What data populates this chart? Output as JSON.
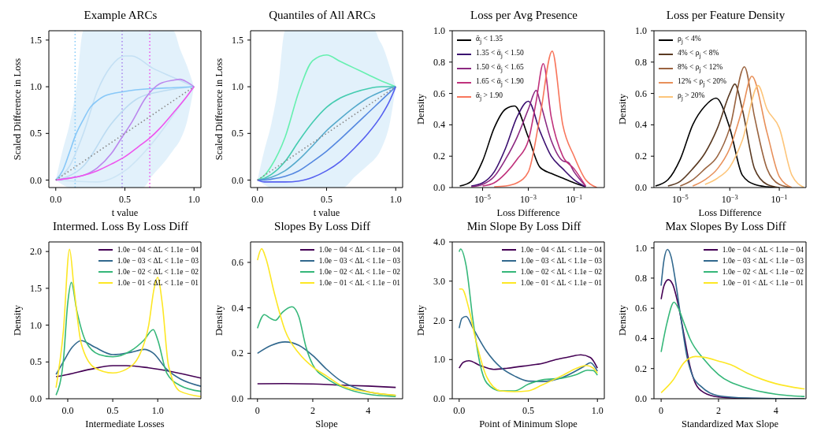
{
  "chart_data": [
    {
      "type": "line",
      "title": "Example ARCs",
      "xlabel": "t value",
      "ylabel": "Scaled Difference in Loss",
      "xlim": [
        -0.05,
        1.05
      ],
      "xticks": [
        {
          "value": 0,
          "label": "0.0"
        },
        0.5,
        {
          "value": 1,
          "label": "1.0"
        }
      ],
      "ylim": [
        -0.08,
        1.6
      ],
      "yticks": [
        {
          "value": 0,
          "label": "0.0"
        },
        0.5,
        {
          "value": 1,
          "label": "1.0"
        },
        1.5
      ],
      "ref_lines": [
        {
          "axis": "x",
          "value": 0.14,
          "color": "#88ccf8",
          "line_style": "dotted"
        },
        {
          "axis": "x",
          "value": 0.48,
          "color": "#aa88ee",
          "line_style": "dotted"
        },
        {
          "axis": "x",
          "value": 0.68,
          "color": "#ee55ee",
          "line_style": "dotted"
        }
      ],
      "series": [
        {
          "color": "#c4e0f4",
          "x": [
            0,
            0.1,
            0.2,
            0.3,
            0.4,
            0.5,
            0.55,
            0.7,
            0.85,
            1
          ],
          "values": [
            0,
            0.15,
            0.5,
            0.95,
            1.22,
            1.33,
            1.33,
            1.2,
            1.1,
            1
          ]
        },
        {
          "color": "#bcdcf2",
          "x": [
            0,
            0.2,
            0.4,
            0.6,
            0.8,
            1
          ],
          "values": [
            0,
            0.15,
            0.6,
            0.88,
            0.96,
            1
          ]
        },
        {
          "color": "#cde5f5",
          "x": [
            0,
            0.3,
            0.5,
            0.7,
            0.9,
            1
          ],
          "values": [
            0,
            -0.02,
            0.1,
            0.4,
            0.8,
            1
          ]
        },
        {
          "color": "#888888",
          "line_style": "dotted",
          "x": [
            0,
            0.05,
            0.1,
            0.15,
            0.2,
            0.3,
            0.4,
            0.5,
            0.6,
            0.63,
            0.7,
            0.8,
            0.85,
            0.9,
            0.95,
            1
          ],
          "values": [
            0,
            0.05,
            0.1,
            0.15,
            0.2,
            0.3,
            0.4,
            0.5,
            0.6,
            0.63,
            0.7,
            0.8,
            0.85,
            0.9,
            0.95,
            1
          ],
          "lower": [
            0,
            -0.05,
            -0.08,
            -0.08,
            -0.08,
            -0.08,
            -0.08,
            -0.08,
            -0.08,
            -0.08,
            0.05,
            0.22,
            0.32,
            0.43,
            0.63,
            1
          ],
          "upper": [
            0,
            0.32,
            0.6,
            1.0,
            1.6,
            1.6,
            1.6,
            1.6,
            1.6,
            1.6,
            1.6,
            1.6,
            1.6,
            1.4,
            1.22,
            1
          ]
        },
        {
          "color": "#88c8f8",
          "x": [
            0,
            0.05,
            0.1,
            0.14,
            0.2,
            0.25,
            0.3,
            0.35,
            0.5,
            0.7,
            0.85,
            1
          ],
          "values": [
            0,
            0.1,
            0.3,
            0.47,
            0.65,
            0.78,
            0.85,
            0.9,
            0.95,
            0.98,
            0.99,
            1
          ]
        },
        {
          "color": "#bb88ee",
          "x": [
            0,
            0.1,
            0.2,
            0.3,
            0.4,
            0.48,
            0.55,
            0.65,
            0.75,
            0.85,
            0.9,
            0.95,
            1
          ],
          "values": [
            0,
            0.02,
            0.05,
            0.13,
            0.28,
            0.46,
            0.62,
            0.88,
            1.03,
            1.07,
            1.08,
            1.05,
            1
          ]
        },
        {
          "color": "#ee55ee",
          "x": [
            0,
            0.1,
            0.2,
            0.3,
            0.4,
            0.5,
            0.6,
            0.68,
            0.75,
            0.85,
            0.95,
            1
          ],
          "values": [
            0,
            0.02,
            0.05,
            0.1,
            0.17,
            0.25,
            0.36,
            0.45,
            0.55,
            0.72,
            0.9,
            1
          ]
        }
      ]
    },
    {
      "type": "line",
      "title": "Quantiles of All ARCs",
      "xlabel": "t value",
      "ylabel": "Scaled Difference in Loss",
      "xlim": [
        -0.05,
        1.05
      ],
      "xticks": [
        {
          "value": 0,
          "label": "0.0"
        },
        0.5,
        {
          "value": 1,
          "label": "1.0"
        }
      ],
      "ylim": [
        -0.08,
        1.6
      ],
      "yticks": [
        {
          "value": 0,
          "label": "0.0"
        },
        0.5,
        {
          "value": 1,
          "label": "1.0"
        },
        1.5
      ],
      "series": [
        {
          "color": "#888888",
          "line_style": "dotted",
          "x": [
            0,
            0.05,
            0.1,
            0.15,
            0.2,
            0.3,
            0.4,
            0.5,
            0.62,
            0.7,
            0.8,
            0.85,
            0.88,
            0.9,
            0.96,
            1
          ],
          "values": [
            0,
            0.05,
            0.1,
            0.15,
            0.2,
            0.3,
            0.4,
            0.5,
            0.62,
            0.7,
            0.8,
            0.85,
            0.88,
            0.9,
            0.96,
            1
          ],
          "lower": [
            0,
            -0.05,
            -0.08,
            -0.08,
            -0.08,
            -0.08,
            -0.08,
            -0.08,
            -0.08,
            0.03,
            0.16,
            0.23,
            0.29,
            0.35,
            0.63,
            1
          ],
          "upper": [
            0,
            0.32,
            0.6,
            1.0,
            1.6,
            1.6,
            1.6,
            1.6,
            1.6,
            1.6,
            1.6,
            1.6,
            1.5,
            1.45,
            1.2,
            1
          ]
        },
        {
          "color": "#66f0b0",
          "x": [
            0,
            0.05,
            0.1,
            0.2,
            0.3,
            0.4,
            0.5,
            0.6,
            0.7,
            0.8,
            0.9,
            0.95,
            1
          ],
          "values": [
            0,
            0.05,
            0.15,
            0.46,
            0.95,
            1.28,
            1.34,
            1.27,
            1.2,
            1.13,
            1.06,
            1.03,
            1
          ]
        },
        {
          "color": "#44ccb0",
          "x": [
            0,
            0.05,
            0.1,
            0.2,
            0.3,
            0.4,
            0.5,
            0.6,
            0.7,
            0.8,
            0.9,
            0.95,
            1
          ],
          "values": [
            0,
            0.02,
            0.06,
            0.2,
            0.42,
            0.62,
            0.78,
            0.88,
            0.94,
            0.98,
            1,
            1,
            1
          ]
        },
        {
          "color": "#55aacc",
          "x": [
            0,
            0.05,
            0.1,
            0.2,
            0.3,
            0.4,
            0.5,
            0.6,
            0.7,
            0.8,
            0.9,
            0.95,
            1
          ],
          "values": [
            0,
            0.01,
            0.03,
            0.1,
            0.22,
            0.37,
            0.53,
            0.66,
            0.78,
            0.88,
            0.95,
            0.98,
            1
          ]
        },
        {
          "color": "#5588e0",
          "x": [
            0,
            0.05,
            0.1,
            0.2,
            0.3,
            0.4,
            0.5,
            0.6,
            0.7,
            0.8,
            0.9,
            0.95,
            1
          ],
          "values": [
            0,
            0,
            0.01,
            0.04,
            0.1,
            0.2,
            0.31,
            0.44,
            0.58,
            0.72,
            0.86,
            0.93,
            1
          ]
        },
        {
          "color": "#5560f0",
          "x": [
            0,
            0.05,
            0.1,
            0.2,
            0.3,
            0.4,
            0.5,
            0.6,
            0.7,
            0.8,
            0.9,
            0.95,
            1
          ],
          "values": [
            0,
            -0.02,
            -0.02,
            -0.02,
            -0.01,
            0.03,
            0.1,
            0.2,
            0.34,
            0.5,
            0.7,
            0.83,
            1
          ]
        }
      ]
    },
    {
      "type": "line",
      "title": "Loss per Avg Presence",
      "xlabel": "Loss Difference",
      "ylabel": "Density",
      "log": "x",
      "legend": "top left",
      "xlim": [
        4.7e-07,
        2.1
      ],
      "xticks": [
        {
          "value": 1e-05,
          "label": "10$^{−5}$"
        },
        {
          "value": 0.001,
          "label": "10$^{−3}$"
        },
        {
          "value": 0.1,
          "label": "10$^{−1}$"
        }
      ],
      "ylim": [
        0,
        1
      ],
      "yticks": [
        {
          "value": 0,
          "label": "0.0"
        },
        0.2,
        0.4,
        0.6,
        0.8,
        {
          "value": 1,
          "label": "1.0"
        }
      ],
      "series": [
        {
          "name": "ᾱ$_{j}$ < 1.35",
          "color": "#000000",
          "x": [
            1e-06,
            3.2e-06,
            1e-05,
            3.2e-05,
            0.0001,
            0.00025,
            0.001,
            0.0032,
            0.01,
            0.032,
            0.1,
            0.32
          ],
          "values": [
            0.01,
            0.04,
            0.17,
            0.38,
            0.5,
            0.52,
            0.32,
            0.13,
            0.09,
            0.06,
            0.03,
            0.005
          ]
        },
        {
          "name": "1.35 < ᾱ$_{j}$ < 1.50",
          "color": "#3b0f70",
          "x": [
            3.2e-06,
            1e-05,
            3.2e-05,
            0.0001,
            0.00032,
            0.001,
            0.0032,
            0.01,
            0.032,
            0.1,
            0.32
          ],
          "values": [
            0.01,
            0.03,
            0.1,
            0.25,
            0.45,
            0.55,
            0.36,
            0.2,
            0.12,
            0.05,
            0.005
          ]
        },
        {
          "name": "1.50 < ᾱ$_{j}$ < 1.65",
          "color": "#8c2981",
          "x": [
            3.2e-06,
            1e-05,
            3.2e-05,
            0.0001,
            0.00032,
            0.001,
            0.0022,
            0.0032,
            0.01,
            0.032,
            0.056,
            0.1,
            0.32
          ],
          "values": [
            0.005,
            0.02,
            0.07,
            0.18,
            0.32,
            0.5,
            0.62,
            0.55,
            0.3,
            0.17,
            0.16,
            0.1,
            0.01
          ]
        },
        {
          "name": "1.65 < ᾱ$_{j}$ < 1.90",
          "color": "#c0327c",
          "x": [
            1e-05,
            3.2e-05,
            0.0001,
            0.00032,
            0.001,
            0.0022,
            0.0045,
            0.01,
            0.032,
            0.1,
            0.32
          ],
          "values": [
            0.01,
            0.03,
            0.09,
            0.18,
            0.3,
            0.55,
            0.79,
            0.45,
            0.2,
            0.12,
            0.01
          ]
        },
        {
          "name": "ᾱ$_{j}$ > 1.90",
          "color": "#f8765c",
          "x": [
            3.2e-05,
            0.0001,
            0.00032,
            0.001,
            0.0032,
            0.011,
            0.032,
            0.1,
            0.32,
            1
          ],
          "values": [
            0.005,
            0.01,
            0.03,
            0.1,
            0.45,
            0.87,
            0.4,
            0.2,
            0.05,
            0
          ]
        }
      ]
    },
    {
      "type": "line",
      "title": "Loss per Feature Density",
      "xlabel": "Loss Difference",
      "ylabel": "Density",
      "log": "x",
      "legend": "top left",
      "xlim": [
        8.7e-07,
        1.2
      ],
      "xticks": [
        {
          "value": 1e-05,
          "label": "10$^{−5}$"
        },
        {
          "value": 0.001,
          "label": "10$^{−3}$"
        },
        {
          "value": 0.1,
          "label": "10$^{−1}$"
        }
      ],
      "ylim": [
        0,
        1
      ],
      "yticks": [
        {
          "value": 0,
          "label": "0.0"
        },
        0.2,
        0.4,
        0.6,
        0.8,
        {
          "value": 1,
          "label": "1.0"
        }
      ],
      "series": [
        {
          "name": "ρ$_{j}$ < 4%",
          "color": "#000000",
          "x": [
            1e-06,
            3.2e-06,
            1e-05,
            3.2e-05,
            0.0001,
            0.00028,
            0.001,
            0.0032,
            0.01,
            0.032,
            0.1
          ],
          "values": [
            0.01,
            0.05,
            0.18,
            0.4,
            0.52,
            0.57,
            0.38,
            0.08,
            0.02,
            0.005,
            0
          ]
        },
        {
          "name": "4% < ρ$_{j}$ < 8%",
          "color": "#5a3a22",
          "x": [
            3.2e-06,
            1e-05,
            3.2e-05,
            0.0001,
            0.00032,
            0.001,
            0.0016,
            0.0032,
            0.01,
            0.032,
            0.1
          ],
          "values": [
            0.01,
            0.04,
            0.12,
            0.22,
            0.38,
            0.6,
            0.66,
            0.5,
            0.12,
            0.02,
            0
          ]
        },
        {
          "name": "8% < ρ$_{j}$ < 12%",
          "color": "#9a6440",
          "x": [
            1e-05,
            3.2e-05,
            0.0001,
            0.00032,
            0.001,
            0.0039,
            0.01,
            0.032,
            0.1,
            0.32
          ],
          "values": [
            0.01,
            0.05,
            0.12,
            0.2,
            0.38,
            0.77,
            0.45,
            0.12,
            0.02,
            0
          ]
        },
        {
          "name": "12% < ρ$_{j}$ < 20%",
          "color": "#e8905a",
          "x": [
            3.2e-05,
            0.0001,
            0.00032,
            0.001,
            0.0032,
            0.0078,
            0.032,
            0.1,
            0.32
          ],
          "values": [
            0.01,
            0.05,
            0.12,
            0.25,
            0.5,
            0.71,
            0.35,
            0.07,
            0
          ]
        },
        {
          "name": "ρ$_{j}$ > 20%",
          "color": "#fdc57a",
          "x": [
            0.0001,
            0.00032,
            0.001,
            0.0032,
            0.014,
            0.032,
            0.1,
            0.32,
            1
          ],
          "values": [
            0.02,
            0.06,
            0.13,
            0.3,
            0.65,
            0.5,
            0.38,
            0.08,
            0
          ]
        }
      ]
    },
    {
      "type": "line",
      "title": "Intermed. Loss By Loss Diff",
      "xlabel": "Intermediate Losses",
      "ylabel": "Density",
      "legend": "top right",
      "xlim": [
        -0.21,
        1.48
      ],
      "xticks": [
        {
          "value": 0,
          "label": "0.0"
        },
        0.5,
        {
          "value": 1,
          "label": "1.0"
        }
      ],
      "ylim": [
        0,
        2.13
      ],
      "yticks": [
        {
          "value": 0,
          "label": "0.0"
        },
        0.5,
        {
          "value": 1,
          "label": "1.0"
        },
        1.5,
        {
          "value": 2,
          "label": "2.0"
        }
      ],
      "series": [
        {
          "name": "1.0e − 04 < ΔL < 1.1e − 04",
          "color": "#440154",
          "x": [
            -0.13,
            0,
            0.25,
            0.5,
            0.65,
            0.9,
            1.15,
            1.48
          ],
          "values": [
            0.3,
            0.33,
            0.4,
            0.45,
            0.45,
            0.42,
            0.37,
            0.28
          ]
        },
        {
          "name": "1.0e − 03 < ΔL < 1.1e − 03",
          "color": "#31688e",
          "x": [
            -0.13,
            -0.05,
            0.05,
            0.15,
            0.3,
            0.5,
            0.7,
            0.85,
            0.95,
            1.1,
            1.25,
            1.48
          ],
          "values": [
            0.33,
            0.5,
            0.7,
            0.79,
            0.7,
            0.6,
            0.63,
            0.67,
            0.62,
            0.4,
            0.27,
            0.17
          ]
        },
        {
          "name": "1.0e − 02 < ΔL < 1.1e − 02",
          "color": "#35b779",
          "x": [
            -0.13,
            -0.05,
            0,
            0.04,
            0.1,
            0.2,
            0.35,
            0.5,
            0.7,
            0.85,
            0.95,
            1,
            1.1,
            1.25,
            1.48
          ],
          "values": [
            0.05,
            0.5,
            1.3,
            1.58,
            1.2,
            0.78,
            0.6,
            0.57,
            0.65,
            0.8,
            0.94,
            0.8,
            0.35,
            0.18,
            0.1
          ]
        },
        {
          "name": "1.0e − 01 < ΔL < 1.1e − 01",
          "color": "#fde725",
          "x": [
            -0.13,
            -0.05,
            0.02,
            0.07,
            0.15,
            0.3,
            0.5,
            0.65,
            0.8,
            0.9,
            0.96,
            1,
            1.05,
            1.12,
            1.25,
            1.48
          ],
          "values": [
            0.15,
            0.9,
            2.03,
            1.5,
            0.75,
            0.42,
            0.35,
            0.4,
            0.6,
            1,
            1.5,
            1.65,
            1.3,
            0.45,
            0.1,
            0.03
          ]
        }
      ]
    },
    {
      "type": "line",
      "title": "Slopes By Loss Diff",
      "xlabel": "Slope",
      "ylabel": "Density",
      "legend": "top right",
      "xlim": [
        -0.25,
        5.25
      ],
      "xticks": [
        0,
        2,
        4
      ],
      "ylim": [
        0,
        0.69
      ],
      "yticks": [
        {
          "value": 0,
          "label": "0.0"
        },
        0.2,
        0.4,
        0.6
      ],
      "series": [
        {
          "name": "1.0e − 04 < ΔL < 1.1e − 04",
          "color": "#440154",
          "x": [
            0,
            1,
            2,
            3,
            4,
            5
          ],
          "values": [
            0.066,
            0.067,
            0.065,
            0.06,
            0.056,
            0.05
          ]
        },
        {
          "name": "1.0e − 03 < ΔL < 1.1e − 03",
          "color": "#31688e",
          "x": [
            0,
            0.5,
            1,
            1.5,
            2,
            2.5,
            3,
            3.5,
            4,
            5
          ],
          "values": [
            0.2,
            0.235,
            0.25,
            0.235,
            0.19,
            0.13,
            0.08,
            0.05,
            0.03,
            0.015
          ]
        },
        {
          "name": "1.0e − 02 < ΔL < 1.1e − 02",
          "color": "#35b779",
          "x": [
            0,
            0.25,
            0.45,
            0.65,
            0.9,
            1.25,
            1.5,
            1.75,
            2,
            2.5,
            3,
            4,
            5
          ],
          "values": [
            0.31,
            0.37,
            0.355,
            0.345,
            0.38,
            0.405,
            0.36,
            0.23,
            0.15,
            0.09,
            0.055,
            0.02,
            0.01
          ]
        },
        {
          "name": "1.0e − 01 < ΔL < 1.1e − 01",
          "color": "#fde725",
          "x": [
            0,
            0.15,
            0.3,
            0.6,
            1,
            1.5,
            2,
            2.5,
            3,
            4,
            5
          ],
          "values": [
            0.61,
            0.66,
            0.62,
            0.47,
            0.3,
            0.2,
            0.14,
            0.1,
            0.06,
            0.03,
            0.015
          ]
        }
      ]
    },
    {
      "type": "line",
      "title": "Min Slope By Loss Diff",
      "xlabel": "Point of Minimum Slope",
      "ylabel": "Density",
      "legend": "top right",
      "xlim": [
        -0.05,
        1.05
      ],
      "xticks": [
        {
          "value": 0,
          "label": "0.0"
        },
        0.5,
        {
          "value": 1,
          "label": "1.0"
        }
      ],
      "ylim": [
        0,
        4
      ],
      "yticks": [
        {
          "value": 0,
          "label": "0.0"
        },
        {
          "value": 1,
          "label": "1.0"
        },
        {
          "value": 2,
          "label": "2.0"
        },
        {
          "value": 3,
          "label": "3.0"
        },
        {
          "value": 4,
          "label": "4.0"
        }
      ],
      "series": [
        {
          "name": "1.0e − 04 < ΔL < 1.1e − 04",
          "color": "#440154",
          "x": [
            0,
            0.03,
            0.07,
            0.15,
            0.25,
            0.35,
            0.5,
            0.6,
            0.7,
            0.8,
            0.88,
            0.95,
            1
          ],
          "values": [
            0.78,
            0.93,
            0.97,
            0.85,
            0.75,
            0.78,
            0.85,
            0.9,
            1,
            1.07,
            1.12,
            1.05,
            0.78
          ]
        },
        {
          "name": "1.0e − 03 < ΔL < 1.1e − 03",
          "color": "#31688e",
          "x": [
            0,
            0.02,
            0.05,
            0.1,
            0.2,
            0.3,
            0.4,
            0.5,
            0.6,
            0.75,
            0.9,
            0.95,
            1
          ],
          "values": [
            1.8,
            2.05,
            2.1,
            1.8,
            1.2,
            0.8,
            0.58,
            0.45,
            0.44,
            0.55,
            0.82,
            0.92,
            0.7
          ]
        },
        {
          "name": "1.0e − 02 < ΔL < 1.1e − 02",
          "color": "#35b779",
          "x": [
            0,
            0.01,
            0.05,
            0.1,
            0.15,
            0.2,
            0.3,
            0.4,
            0.5,
            0.6,
            0.75,
            0.85,
            0.93,
            0.97,
            1
          ],
          "values": [
            3.75,
            3.82,
            3.4,
            2,
            0.9,
            0.4,
            0.2,
            0.2,
            0.37,
            0.48,
            0.53,
            0.62,
            0.73,
            0.72,
            0.6
          ]
        },
        {
          "name": "1.0e − 01 < ΔL < 1.1e − 01",
          "color": "#fde725",
          "x": [
            0,
            0.02,
            0.07,
            0.12,
            0.2,
            0.3,
            0.4,
            0.5,
            0.6,
            0.75,
            0.85,
            0.92,
            0.97,
            1
          ],
          "values": [
            2.8,
            2.8,
            2.3,
            1.5,
            0.55,
            0.2,
            0.18,
            0.2,
            0.35,
            0.6,
            0.78,
            0.85,
            0.78,
            0.65
          ]
        }
      ]
    },
    {
      "type": "line",
      "title": "Max Slopes By Loss Diff",
      "xlabel": "Standardized Max Slope",
      "ylabel": "Density",
      "legend": "top right",
      "xlim": [
        -0.25,
        5.05
      ],
      "xticks": [
        0,
        2,
        4
      ],
      "ylim": [
        0,
        1.04
      ],
      "yticks": [
        {
          "value": 0,
          "label": "0.0"
        },
        0.2,
        0.4,
        0.6,
        0.8,
        {
          "value": 1,
          "label": "1.0"
        }
      ],
      "series": [
        {
          "name": "1.0e − 04 < ΔL < 1.1e − 04",
          "color": "#440154",
          "x": [
            0,
            0.1,
            0.25,
            0.4,
            0.6,
            0.8,
            1,
            1.2,
            1.5,
            2,
            3,
            5
          ],
          "values": [
            0.66,
            0.75,
            0.79,
            0.76,
            0.62,
            0.42,
            0.22,
            0.1,
            0.04,
            0.012,
            0.002,
            0
          ]
        },
        {
          "name": "1.0e − 03 < ΔL < 1.1e − 03",
          "color": "#31688e",
          "x": [
            0,
            0.1,
            0.22,
            0.35,
            0.5,
            0.7,
            0.9,
            1.1,
            1.4,
            2,
            3,
            5
          ],
          "values": [
            0.75,
            0.92,
            0.99,
            0.94,
            0.78,
            0.52,
            0.28,
            0.15,
            0.08,
            0.02,
            0.005,
            0
          ]
        },
        {
          "name": "1.0e − 02 < ΔL < 1.1e − 02",
          "color": "#35b779",
          "x": [
            0,
            0.2,
            0.45,
            0.6,
            0.8,
            1,
            1.5,
            2,
            3,
            4,
            5
          ],
          "values": [
            0.31,
            0.5,
            0.64,
            0.6,
            0.5,
            0.4,
            0.26,
            0.16,
            0.07,
            0.03,
            0.015
          ]
        },
        {
          "name": "1.0e − 01 < ΔL < 1.1e − 01",
          "color": "#fde725",
          "x": [
            0,
            0.4,
            0.8,
            1.2,
            1.5,
            2,
            2.5,
            3,
            3.5,
            4,
            5
          ],
          "values": [
            0.04,
            0.12,
            0.24,
            0.28,
            0.275,
            0.25,
            0.22,
            0.17,
            0.13,
            0.1,
            0.065
          ]
        }
      ]
    }
  ]
}
